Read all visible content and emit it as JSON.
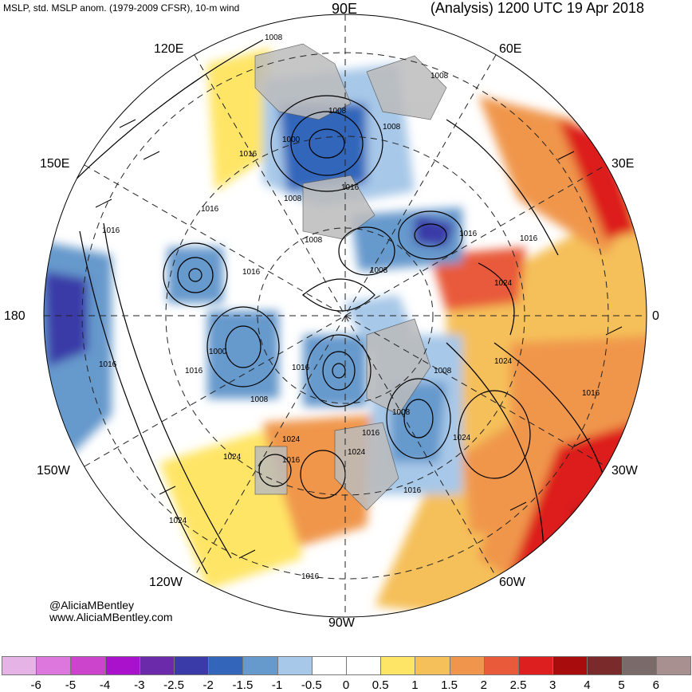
{
  "header": {
    "left": "MSLP, std. MSLP anom. (1979-2009 CFSR), 10-m wind",
    "right": "(Analysis) 1200 UTC 19 Apr 2018"
  },
  "map_labels": {
    "n90e": "90E",
    "e120": "120E",
    "e60": "60E",
    "e150": "150E",
    "e30": "30E",
    "w180": "180",
    "e0": "0",
    "w150": "150W",
    "w30": "30W",
    "w120": "120W",
    "w60": "60W",
    "w90": "90W"
  },
  "credit": {
    "handle": "@AliciaMBentley",
    "site": "www.AliciaMBentley.com"
  },
  "isobar_labels": [
    "1008",
    "1008",
    "1008",
    "1008",
    "1000",
    "1016",
    "1016",
    "1016",
    "1008",
    "1016",
    "1008",
    "1016",
    "1016",
    "1008",
    "1016",
    "1024",
    "1000",
    "1016",
    "1016",
    "1016",
    "1008",
    "1008",
    "1024",
    "1008",
    "1016",
    "1016",
    "1024",
    "1024",
    "1024",
    "1016",
    "1024",
    "1016",
    "1024",
    "1016"
  ],
  "colorbar": {
    "colors": [
      "#e6b3e6",
      "#dd77dd",
      "#cc44cc",
      "#aa11cc",
      "#6a2aaa",
      "#3a3aa8",
      "#3366bb",
      "#6699cc",
      "#a7c8e8",
      "#ffffff",
      "#ffffff",
      "#ffe566",
      "#f5c05a",
      "#f0964c",
      "#e85a3a",
      "#dd1f1f",
      "#a80c0c",
      "#7a2a2a",
      "#7a6a6a",
      "#a89090"
    ],
    "ticks": [
      "-6",
      "-5",
      "-4",
      "-3",
      "-2.5",
      "-2",
      "-1.5",
      "-1",
      "-0.5",
      "0",
      "0.5",
      "1",
      "1.5",
      "2",
      "2.5",
      "3",
      "4",
      "5",
      "6"
    ]
  }
}
